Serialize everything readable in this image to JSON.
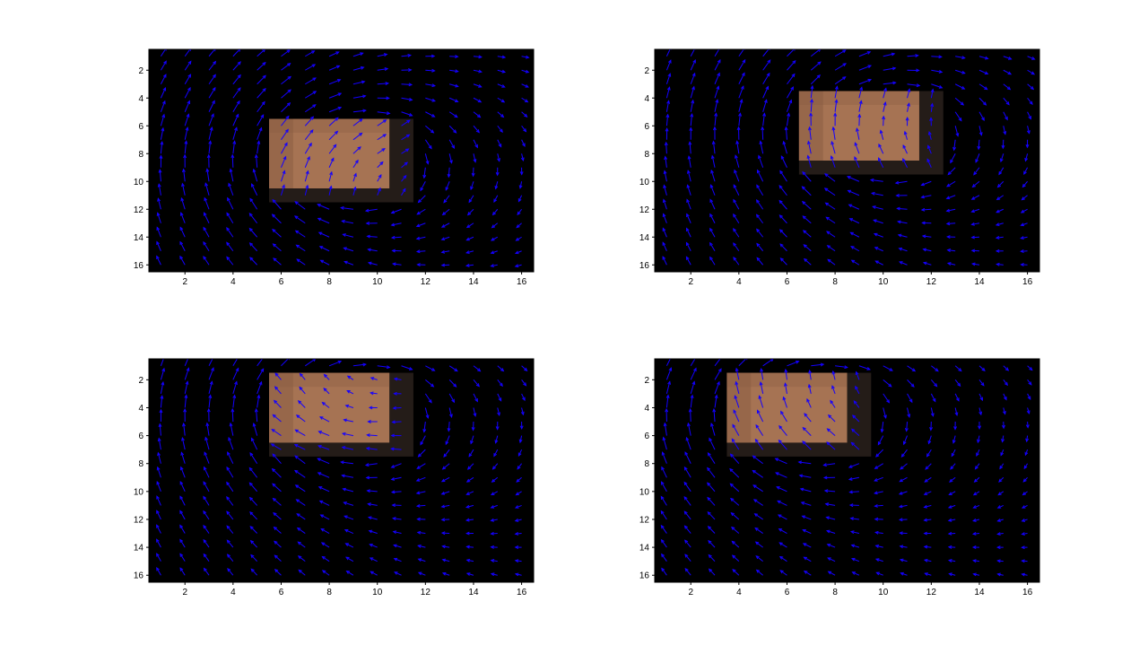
{
  "chart_data": [
    {
      "type": "quiver",
      "panel": "top-left",
      "xlim": [
        0.5,
        16.5
      ],
      "ylim": [
        0.5,
        16.5
      ],
      "y_direction": "reverse",
      "xticks": [
        2,
        4,
        6,
        8,
        10,
        12,
        14,
        16
      ],
      "yticks": [
        2,
        4,
        6,
        8,
        10,
        12,
        14,
        16
      ],
      "grid": false,
      "background_color": "#000000",
      "arrow_color": "#1400ff",
      "block": {
        "x_range": [
          5.5,
          11.5
        ],
        "y_range": [
          5.5,
          11.5
        ]
      },
      "flow": {
        "center": [
          8.5,
          8.5
        ],
        "vortex_strength": 1,
        "block_velocity": [
          0.6,
          -0.5
        ]
      }
    },
    {
      "type": "quiver",
      "panel": "top-right",
      "xlim": [
        0.5,
        16.5
      ],
      "ylim": [
        0.5,
        16.5
      ],
      "y_direction": "reverse",
      "xticks": [
        2,
        4,
        6,
        8,
        10,
        12,
        14,
        16
      ],
      "yticks": [
        2,
        4,
        6,
        8,
        10,
        12,
        14,
        16
      ],
      "grid": false,
      "background_color": "#000000",
      "arrow_color": "#1400ff",
      "block": {
        "x_range": [
          6.5,
          12.5
        ],
        "y_range": [
          3.5,
          9.5
        ]
      },
      "flow": {
        "center": [
          9.5,
          6.5
        ],
        "vortex_strength": 1,
        "block_velocity": [
          -0.2,
          -0.8
        ]
      }
    },
    {
      "type": "quiver",
      "panel": "bottom-left",
      "xlim": [
        0.5,
        16.5
      ],
      "ylim": [
        0.5,
        16.5
      ],
      "y_direction": "reverse",
      "xticks": [
        2,
        4,
        6,
        8,
        10,
        12,
        14,
        16
      ],
      "yticks": [
        2,
        4,
        6,
        8,
        10,
        12,
        14,
        16
      ],
      "grid": false,
      "background_color": "#000000",
      "arrow_color": "#1400ff",
      "block": {
        "x_range": [
          5.5,
          11.5
        ],
        "y_range": [
          1.5,
          7.5
        ]
      },
      "flow": {
        "center": [
          8.5,
          4.5
        ],
        "vortex_strength": 1,
        "block_velocity": [
          -1.0,
          0.05
        ]
      }
    },
    {
      "type": "quiver",
      "panel": "bottom-right",
      "xlim": [
        0.5,
        16.5
      ],
      "ylim": [
        0.5,
        16.5
      ],
      "y_direction": "reverse",
      "xticks": [
        2,
        4,
        6,
        8,
        10,
        12,
        14,
        16
      ],
      "yticks": [
        2,
        4,
        6,
        8,
        10,
        12,
        14,
        16
      ],
      "grid": false,
      "background_color": "#000000",
      "arrow_color": "#1400ff",
      "block": {
        "x_range": [
          3.5,
          9.5
        ],
        "y_range": [
          1.5,
          7.5
        ]
      },
      "flow": {
        "center": [
          6.5,
          4.5
        ],
        "vortex_strength": 1,
        "block_velocity": [
          -0.7,
          -0.7
        ]
      }
    }
  ],
  "colors": {
    "figure_background": "#ffffff",
    "axes_background": "#000000",
    "arrow": "#1400ff",
    "block_bright": "#b07a58",
    "block_mid": "#8a5d43",
    "block_dim": "#3a2a22",
    "block_edge": "#241c18"
  }
}
